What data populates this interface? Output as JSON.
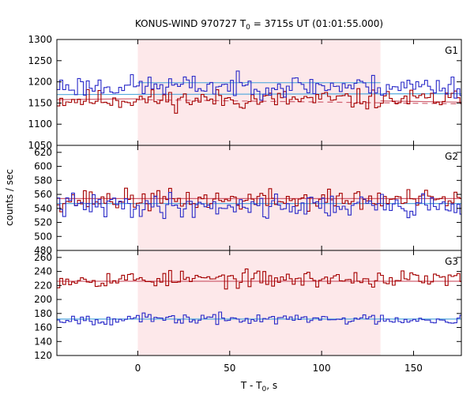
{
  "chart_data": {
    "type": "line",
    "title_main": "KONUS-WIND 970727 T",
    "title_sub": "0",
    "title_rest": " = 3715s UT (01:01:55.000)",
    "xlabel_main": "T - T",
    "xlabel_sub": "0",
    "xlabel_rest": ", s",
    "ylabel": "counts / sec",
    "xlim": [
      -44,
      176
    ],
    "xticks": [
      0,
      50,
      100,
      150
    ],
    "shaded_interval": [
      0,
      132
    ],
    "colors": {
      "series_red": "#a50000",
      "series_blue": "#2828c8",
      "bg_red": "#d06070",
      "bg_blue": "#55aadd",
      "shade": "#fde8ea"
    },
    "panels": [
      {
        "label": "G1",
        "ylim": [
          1050,
          1300
        ],
        "yticks": [
          1050,
          1100,
          1150,
          1200,
          1250,
          1300
        ],
        "series": [
          {
            "color": "red",
            "base": 1158,
            "amp": 22,
            "seed": 11,
            "dt": 1.6
          },
          {
            "color": "blue",
            "base": 1190,
            "amp": 24,
            "seed": 23,
            "dt": 1.6
          }
        ],
        "background": [
          {
            "color": "red",
            "x": [
              -44,
              0
            ],
            "y": [
              1158,
              1160
            ],
            "dash": false
          },
          {
            "color": "red",
            "x": [
              132,
              176
            ],
            "y": [
              1155,
              1152
            ],
            "dash": false
          },
          {
            "color": "red",
            "x": [
              0,
              176
            ],
            "y": [
              1158,
              1148
            ],
            "dash": true
          },
          {
            "color": "blue",
            "x": [
              -44,
              176
            ],
            "y": [
              1170,
              1172
            ],
            "dash": false
          },
          {
            "color": "blue",
            "x": [
              0,
              132
            ],
            "y": [
              1198,
              1198
            ],
            "dash": false
          }
        ]
      },
      {
        "label": "G2",
        "ylim": [
          480,
          630
        ],
        "yticks": [
          480,
          500,
          520,
          540,
          560,
          580,
          600,
          620
        ],
        "series": [
          {
            "color": "red",
            "base": 552,
            "amp": 14,
            "seed": 37,
            "dt": 1.6
          },
          {
            "color": "blue",
            "base": 544,
            "amp": 16,
            "seed": 41,
            "dt": 1.6
          }
        ],
        "background": [
          {
            "color": "red",
            "x": [
              -44,
              176
            ],
            "y": [
              554,
              554
            ],
            "dash": false
          },
          {
            "color": "blue",
            "x": [
              -44,
              176
            ],
            "y": [
              547,
              547
            ],
            "dash": false
          }
        ]
      },
      {
        "label": "G3",
        "ylim": [
          120,
          270
        ],
        "yticks": [
          120,
          140,
          160,
          180,
          200,
          220,
          240,
          260
        ],
        "series": [
          {
            "color": "red",
            "base": 229,
            "amp": 11,
            "seed": 53,
            "dt": 1.6
          },
          {
            "color": "blue",
            "base": 172,
            "amp": 7,
            "seed": 67,
            "dt": 1.6
          }
        ],
        "background": [
          {
            "color": "red",
            "x": [
              -44,
              176
            ],
            "y": [
              226,
              226
            ],
            "dash": false
          },
          {
            "color": "blue",
            "x": [
              -44,
              176
            ],
            "y": [
              172,
              172
            ],
            "dash": false
          }
        ]
      }
    ]
  }
}
